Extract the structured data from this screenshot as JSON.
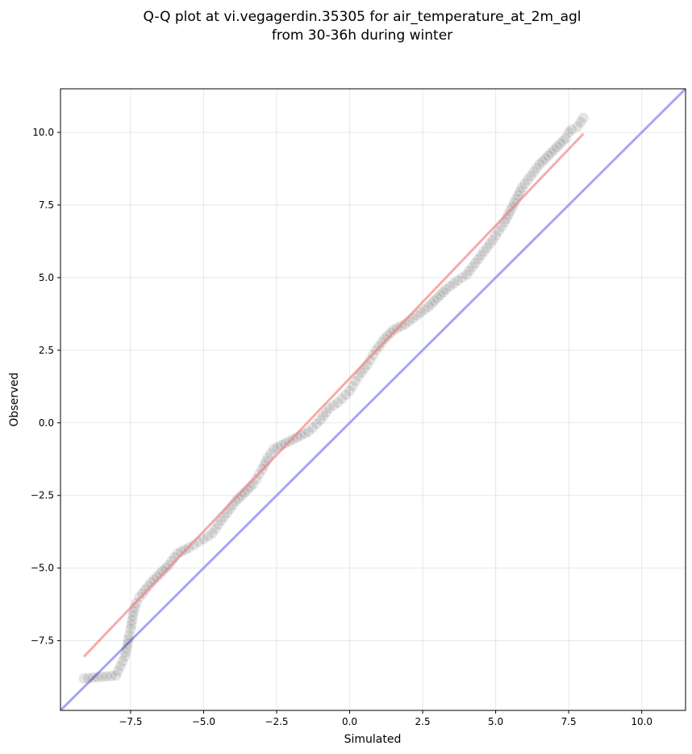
{
  "chart_data": {
    "type": "scatter",
    "title_lines": [
      "Q-Q plot at vi.vegagerdin.35305 for air_temperature_at_2m_agl",
      "from 30-36h during winter"
    ],
    "xlabel": "Simulated",
    "ylabel": "Observed",
    "xlim": [
      -9.9,
      11.5
    ],
    "ylim": [
      -9.9,
      11.5
    ],
    "x_ticks": [
      -7.5,
      -5.0,
      -2.5,
      0.0,
      2.5,
      5.0,
      7.5,
      10.0
    ],
    "y_ticks": [
      -7.5,
      -5.0,
      -2.5,
      0.0,
      2.5,
      5.0,
      7.5,
      10.0
    ],
    "x_tick_labels": [
      "−7.5",
      "−5.0",
      "−2.5",
      "0.0",
      "2.5",
      "5.0",
      "7.5",
      "10.0"
    ],
    "y_tick_labels": [
      "−7.5",
      "−5.0",
      "−2.5",
      "0.0",
      "2.5",
      "5.0",
      "7.5",
      "10.0"
    ],
    "grid": true,
    "colors": {
      "points": "#000000",
      "fit_line": "#f08080",
      "identity_line": "#8080f0"
    },
    "fit_line": {
      "x": [
        -9.1,
        8.0
      ],
      "y": [
        -8.05,
        9.95
      ]
    },
    "identity_line": {
      "x": [
        -9.9,
        11.5
      ],
      "y": [
        -9.9,
        11.5
      ]
    },
    "quantiles": {
      "x": [
        -9.1,
        -8.0,
        -7.7,
        -7.6,
        -7.55,
        -7.5,
        -7.45,
        -7.4,
        -7.3,
        -7.2,
        -7.0,
        -6.8,
        -6.5,
        -6.2,
        -5.9,
        -5.5,
        -5.0,
        -4.7,
        -4.5,
        -4.2,
        -3.9,
        -3.6,
        -3.3,
        -3.0,
        -2.8,
        -2.6,
        -2.2,
        -1.8,
        -1.4,
        -1.0,
        -0.7,
        -0.4,
        0.0,
        0.3,
        0.6,
        0.9,
        1.2,
        1.5,
        1.9,
        2.3,
        2.7,
        3.0,
        3.3,
        3.7,
        4.0,
        4.3,
        4.6,
        4.9,
        5.1,
        5.3,
        5.5,
        5.7,
        5.9,
        6.2,
        6.5,
        6.8,
        7.0,
        7.2,
        7.4,
        7.5,
        7.6,
        7.8,
        8.0
      ],
      "y": [
        -8.8,
        -8.7,
        -8.05,
        -7.6,
        -7.3,
        -7.1,
        -6.8,
        -6.5,
        -6.2,
        -6.0,
        -5.75,
        -5.5,
        -5.2,
        -4.9,
        -4.5,
        -4.3,
        -4.0,
        -3.8,
        -3.5,
        -3.1,
        -2.7,
        -2.4,
        -2.1,
        -1.6,
        -1.2,
        -0.9,
        -0.7,
        -0.5,
        -0.3,
        0.1,
        0.5,
        0.7,
        1.1,
        1.6,
        2.0,
        2.5,
        2.9,
        3.2,
        3.4,
        3.7,
        4.0,
        4.3,
        4.6,
        4.9,
        5.1,
        5.5,
        5.9,
        6.3,
        6.6,
        6.9,
        7.3,
        7.7,
        8.1,
        8.5,
        8.9,
        9.2,
        9.4,
        9.6,
        9.8,
        10.0,
        10.1,
        10.2,
        10.5
      ]
    }
  }
}
